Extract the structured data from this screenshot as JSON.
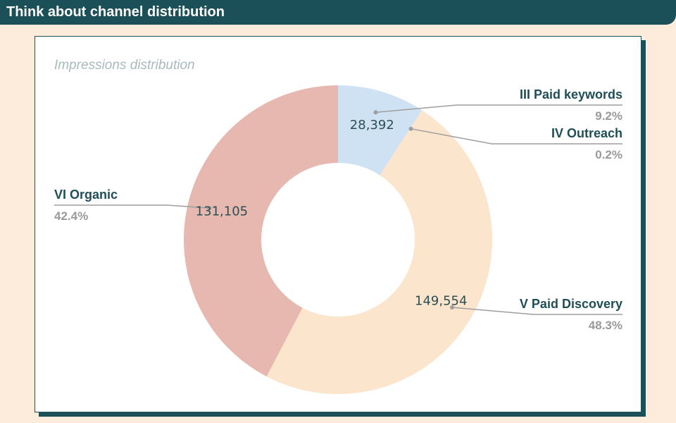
{
  "header": {
    "title": "Think about channel distribution"
  },
  "chart_data": {
    "type": "pie",
    "style": "donut",
    "title": "Impressions distribution",
    "slices": [
      {
        "name": "III Paid keywords",
        "value": 28392,
        "label": "28,392",
        "percent_label": "9.2%",
        "color": "#cfe2f3"
      },
      {
        "name": "IV Outreach",
        "value": 600,
        "label": "",
        "percent_label": "0.2%",
        "color": "#fce5cd"
      },
      {
        "name": "V Paid Discovery",
        "value": 149554,
        "label": "149,554",
        "percent_label": "48.3%",
        "color": "#fce5cd"
      },
      {
        "name": "VI Organic",
        "value": 131105,
        "label": "131,105",
        "percent_label": "42.4%",
        "color": "#e6b8af"
      }
    ]
  },
  "colors": {
    "header_bg": "#1c5058",
    "page_bg": "#fdebdc",
    "leader_line": "#9e9e9e"
  }
}
